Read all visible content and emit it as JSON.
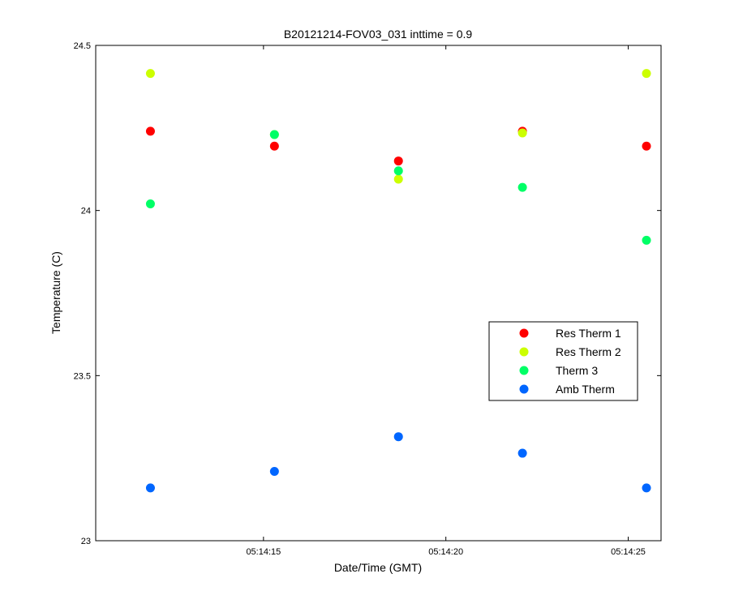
{
  "chart_data": {
    "type": "scatter",
    "title": "B20121214-FOV03_031 inttime = 0.9",
    "xlabel": "Date/Time (GMT)",
    "ylabel": "Temperature (C)",
    "ylim": [
      23,
      24.5
    ],
    "yticks": [
      23,
      23.5,
      24,
      24.5
    ],
    "ytick_labels": [
      "23",
      "23.5",
      "24",
      "24.5"
    ],
    "xlim": [
      "05:14:10.4",
      "05:14:25.9"
    ],
    "xticks": [
      "05:14:15",
      "05:14:20",
      "05:14:25"
    ],
    "xtick_labels": [
      "05:14:15",
      "05:14:20",
      "05:14:25"
    ],
    "x": [
      "05:14:11.9",
      "05:14:15.3",
      "05:14:18.7",
      "05:14:22.1",
      "05:14:25.5"
    ],
    "series": [
      {
        "name": "Res Therm 1",
        "color": "#ff0000",
        "values": [
          24.24,
          24.195,
          24.15,
          24.24,
          24.195
        ]
      },
      {
        "name": "Res Therm 2",
        "color": "#ccff00",
        "values": [
          24.415,
          24.23,
          24.095,
          24.235,
          24.415
        ]
      },
      {
        "name": "Therm 3",
        "color": "#00ff66",
        "values": [
          24.02,
          24.23,
          24.12,
          24.07,
          23.91
        ]
      },
      {
        "name": "Amb Therm",
        "color": "#0066ff",
        "values": [
          23.16,
          23.21,
          23.315,
          23.265,
          23.16
        ]
      }
    ],
    "legend_position": "lower-right",
    "grid": false
  }
}
